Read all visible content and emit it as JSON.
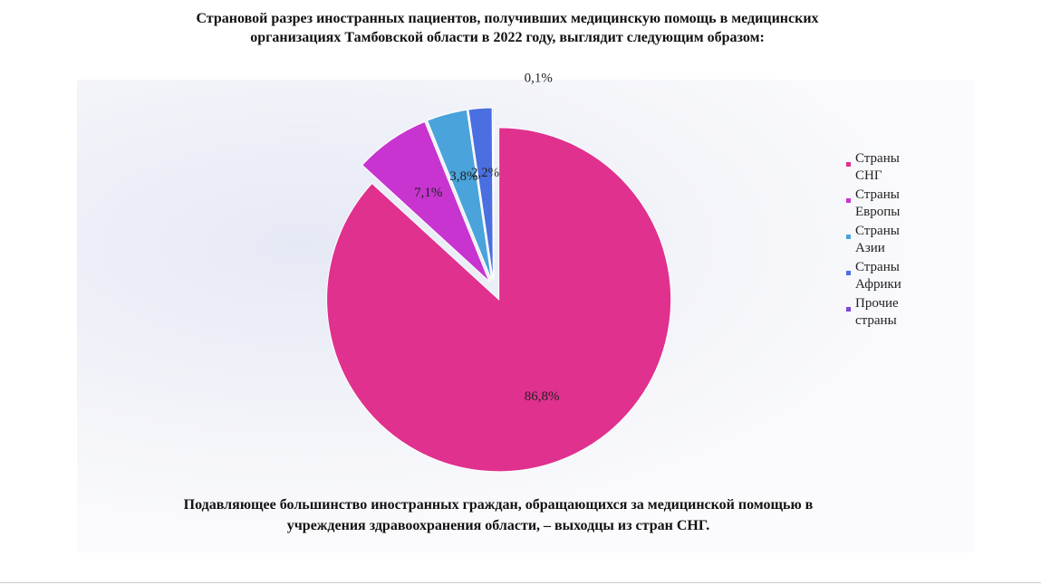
{
  "chart_data": {
    "type": "pie",
    "title": "Страновой разрез иностранных пациентов, получивших медицинскую помощь в медицинских организациях Тамбовской области в 2022 году, выглядит следующим образом:",
    "categories": [
      "Страны СНГ",
      "Страны Европы",
      "Страны Азии",
      "Страны Африки",
      "Прочие страны"
    ],
    "values": [
      86.8,
      7.1,
      3.8,
      2.2,
      0.1
    ],
    "value_labels": [
      "86,8%",
      "7,1%",
      "3,8%",
      "2,2%",
      "0,1%"
    ],
    "colors": [
      "#e0318f",
      "#c834cf",
      "#4aa3da",
      "#4a6fe0",
      "#7b45d6"
    ],
    "legend": "right",
    "caption": "Подавляющее большинство иностранных граждан, обращающихся за медицинской помощью в учреждения здравоохранения области, – выходцы из стран СНГ."
  }
}
